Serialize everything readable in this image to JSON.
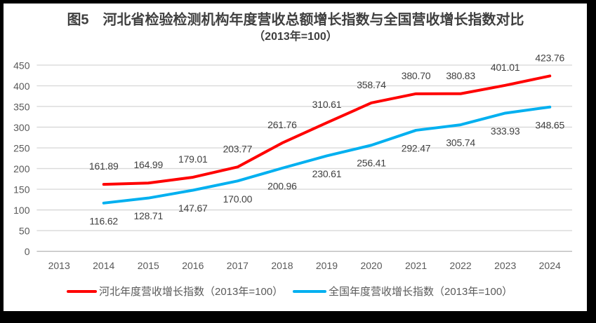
{
  "chart_data": {
    "type": "line",
    "title": "图5　河北省检验检测机构年度营收总额增长指数与全国营收增长指数对比",
    "subtitle": "（2013年=100）",
    "categories": [
      "2013",
      "2014",
      "2015",
      "2016",
      "2017",
      "2018",
      "2019",
      "2020",
      "2021",
      "2022",
      "2023",
      "2024"
    ],
    "series": [
      {
        "name": "河北年度营收增长指数（2013年=100）",
        "color": "#FF0000",
        "labels_position": "above",
        "values": [
          null,
          161.89,
          164.99,
          179.01,
          203.77,
          261.76,
          310.61,
          358.74,
          380.7,
          380.83,
          401.01,
          423.76
        ],
        "labels": [
          "",
          "161.89",
          "164.99",
          "179.01",
          "203.77",
          "261.76",
          "310.61",
          "358.74",
          "380.70",
          "380.83",
          "401.01",
          "423.76"
        ]
      },
      {
        "name": "全国年度营收增长指数（2013年=100）",
        "color": "#00B0F0",
        "labels_position": "below",
        "values": [
          null,
          116.62,
          128.71,
          147.67,
          170.0,
          200.96,
          230.61,
          256.41,
          292.47,
          305.74,
          333.93,
          348.65
        ],
        "labels": [
          "",
          "116.62",
          "128.71",
          "147.67",
          "170.00",
          "200.96",
          "230.61",
          "256.41",
          "292.47",
          "305.74",
          "333.93",
          "348.65"
        ]
      }
    ],
    "ylim": [
      0,
      450
    ],
    "ytick_step": 50,
    "grid": "horizontal",
    "legend_position": "bottom",
    "data_labels": true
  },
  "colors": {
    "frame": "#000000",
    "background": "#FFFFFF",
    "gridline": "#D9D9D9",
    "axis_line": "#ABABAB",
    "axis_label": "#595959",
    "data_label": "#404040",
    "title": "#404040",
    "legend_label": "#595959"
  }
}
